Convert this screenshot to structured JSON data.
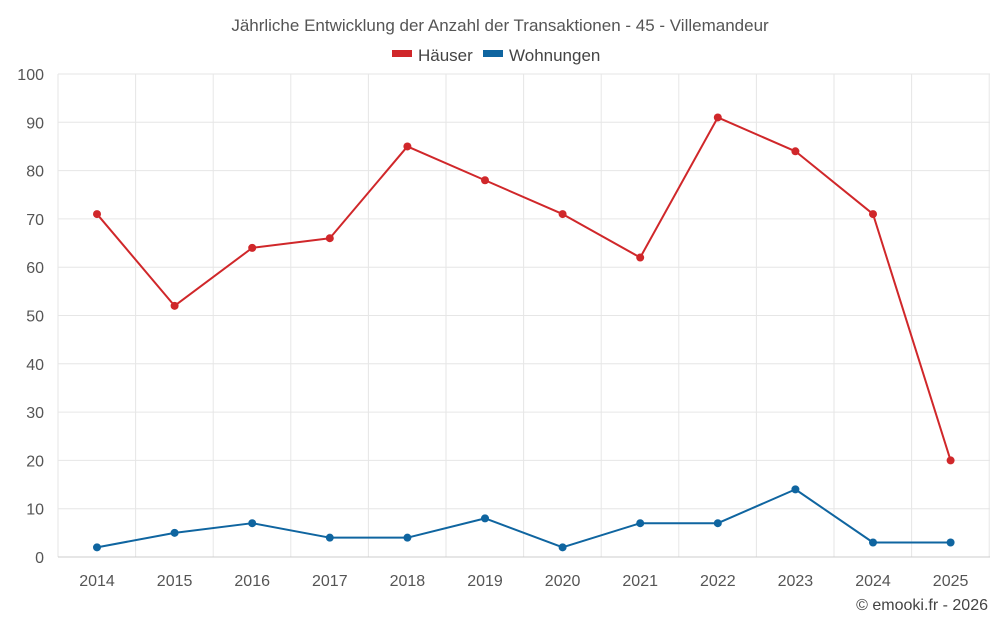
{
  "chart_data": {
    "type": "line",
    "title": "Jährliche Entwicklung der Anzahl der Transaktionen - 45 - Villemandeur",
    "categories": [
      "2014",
      "2015",
      "2016",
      "2017",
      "2018",
      "2019",
      "2020",
      "2021",
      "2022",
      "2023",
      "2024",
      "2025"
    ],
    "series": [
      {
        "name": "Häuser",
        "color": "#d0272a",
        "values": [
          71,
          52,
          64,
          66,
          85,
          78,
          71,
          62,
          91,
          84,
          71,
          20
        ]
      },
      {
        "name": "Wohnungen",
        "color": "#0f65a0",
        "values": [
          2,
          5,
          7,
          4,
          4,
          8,
          2,
          7,
          7,
          14,
          3,
          3
        ]
      }
    ],
    "yticks": [
      "0",
      "10",
      "20",
      "30",
      "40",
      "50",
      "60",
      "70",
      "80",
      "90",
      "100"
    ],
    "ylim": [
      0,
      100
    ],
    "xlabel": "",
    "ylabel": "",
    "grid": true,
    "legend": "top-center"
  },
  "credit": "© emooki.fr - 2026"
}
